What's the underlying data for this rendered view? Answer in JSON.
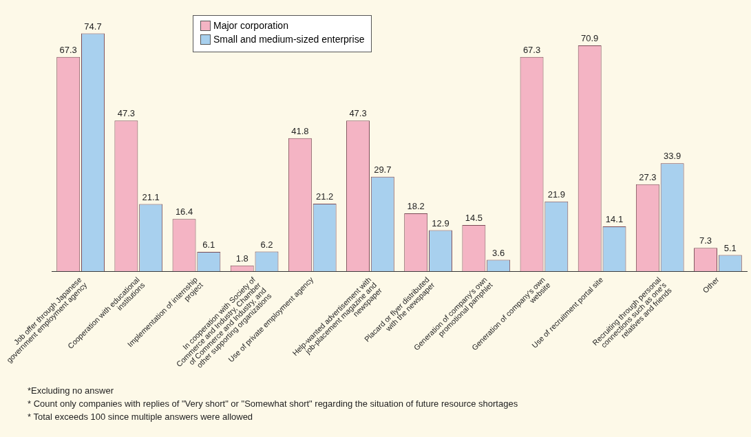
{
  "chart_data": {
    "type": "bar",
    "categories": [
      "Job offer through Japanese government employment agency",
      "Cooperation with educational institutions",
      "Implementation of internship project",
      "In cooperation with Society of Commerce and Industry, Chamber of Commerce and Industry, and other supporting organizations",
      "Use of private employment agency",
      "Help-wanted advertisement with job-placement magazine and newspaper",
      "Placard or flyer distributed with the newspaper",
      "Generation of company's own promotional pamphlet",
      "Generation of company's own website",
      "Use of recruitment portal site",
      "Recruiting through personal connections such as one's relatives and friends",
      "Other"
    ],
    "series": [
      {
        "name": "Major corporation",
        "color": "#f4b4c4",
        "values": [
          67.3,
          47.3,
          16.4,
          1.8,
          41.8,
          47.3,
          18.2,
          14.5,
          67.3,
          70.9,
          27.3,
          7.3
        ]
      },
      {
        "name": "Small and medium-sized enterprise",
        "color": "#a8d0ee",
        "values": [
          74.7,
          21.1,
          6.1,
          6.2,
          21.2,
          29.7,
          12.9,
          3.6,
          21.9,
          14.1,
          33.9,
          5.1
        ]
      }
    ],
    "data_labels": true,
    "legend": "top",
    "grid": false,
    "annotations": [
      "*Excluding no answer",
      "* Count only companies with replies of \"Very short\" or \"Somewhat short\" regarding the situation of future resource shortages",
      "* Total exceeds 100 since multiple answers were allowed"
    ]
  }
}
